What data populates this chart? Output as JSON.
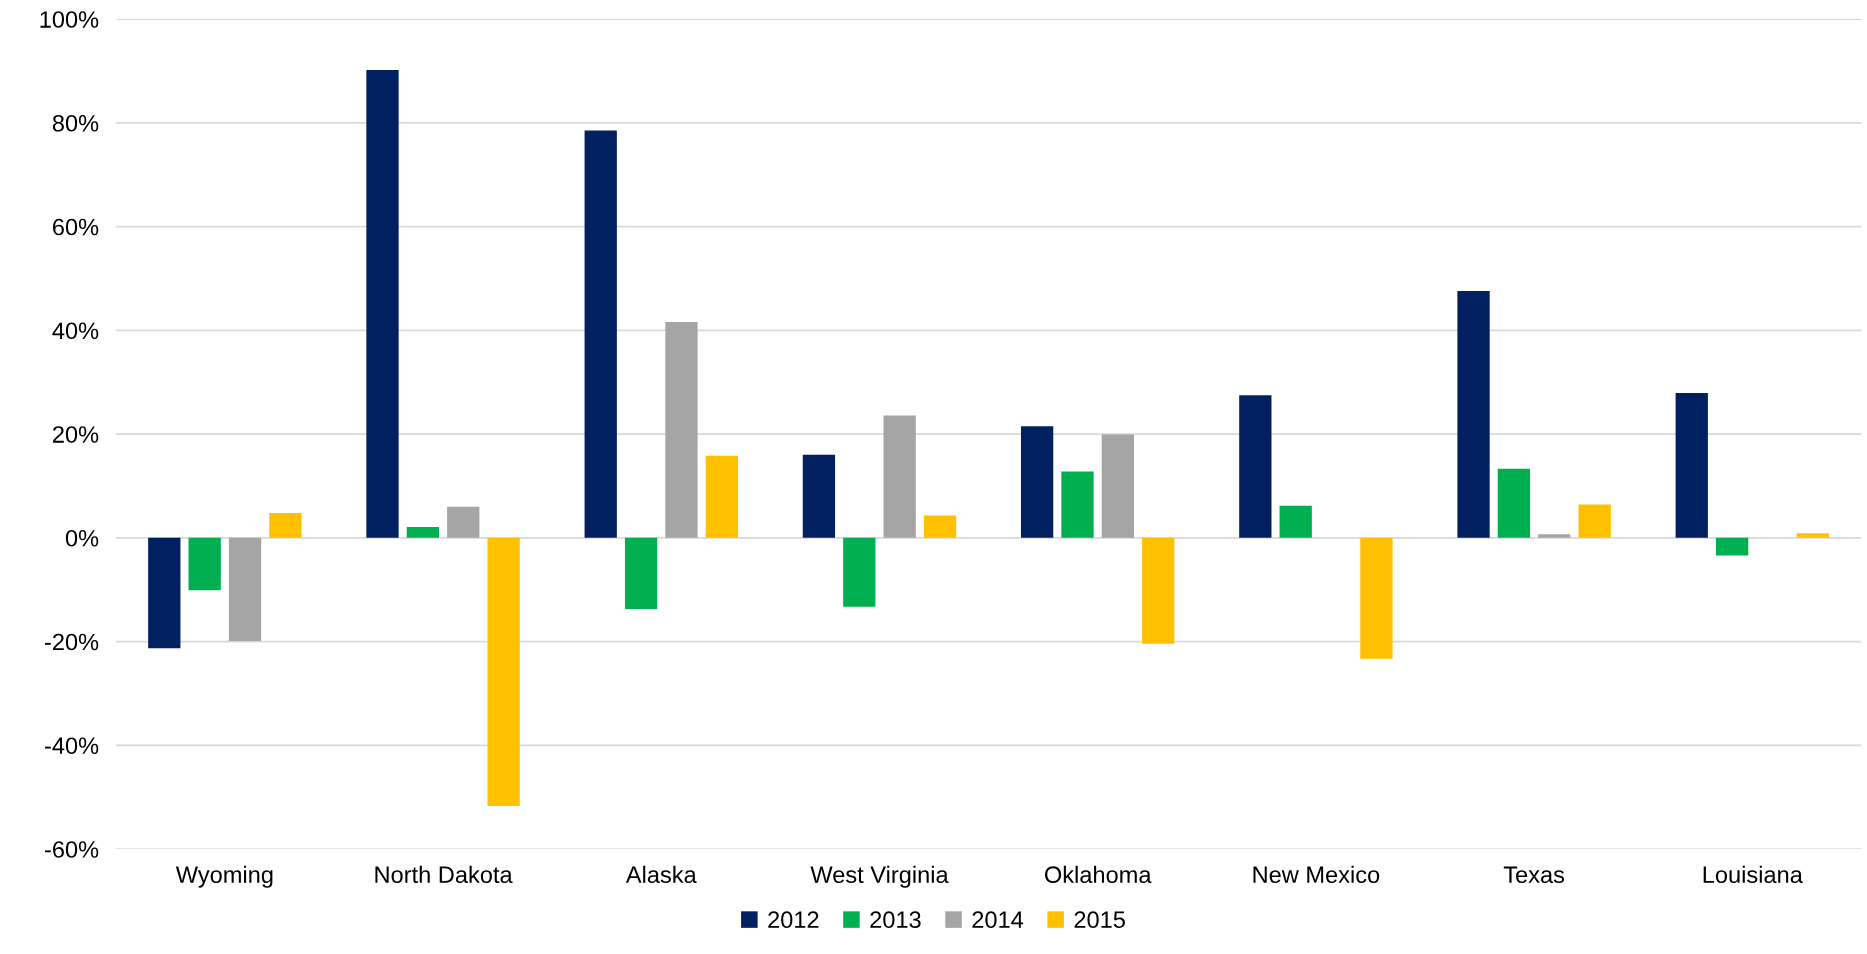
{
  "chart_data": {
    "type": "bar",
    "categories": [
      "Wyoming",
      "North Dakota",
      "Alaska",
      "West Virginia",
      "Oklahoma",
      "New Mexico",
      "Texas",
      "Louisiana"
    ],
    "series": [
      {
        "name": "2012",
        "color": "#002060",
        "values": [
          -21.3,
          90.2,
          78.5,
          16.0,
          21.5,
          27.5,
          47.6,
          27.9
        ]
      },
      {
        "name": "2013",
        "color": "#00b050",
        "values": [
          -10.1,
          2.1,
          -13.7,
          -13.3,
          12.8,
          6.2,
          13.3,
          -3.4
        ]
      },
      {
        "name": "2014",
        "color": "#a5a5a5",
        "values": [
          -19.9,
          6.0,
          41.6,
          23.6,
          19.9,
          0,
          0.7,
          0
        ]
      },
      {
        "name": "2015",
        "color": "#ffc000",
        "values": [
          4.8,
          -51.7,
          15.8,
          4.3,
          -20.4,
          -23.3,
          6.4,
          0.9
        ]
      }
    ],
    "ylim": [
      -60,
      100
    ],
    "yticks": [
      {
        "value": -60,
        "label": "-60%"
      },
      {
        "value": -40,
        "label": "-40%"
      },
      {
        "value": -20,
        "label": "-20%"
      },
      {
        "value": 0,
        "label": "0%"
      },
      {
        "value": 20,
        "label": "20%"
      },
      {
        "value": 40,
        "label": "40%"
      },
      {
        "value": 60,
        "label": "60%"
      },
      {
        "value": 80,
        "label": "80%"
      },
      {
        "value": 100,
        "label": "100%"
      }
    ],
    "grid": "y",
    "legend": "bottom"
  }
}
